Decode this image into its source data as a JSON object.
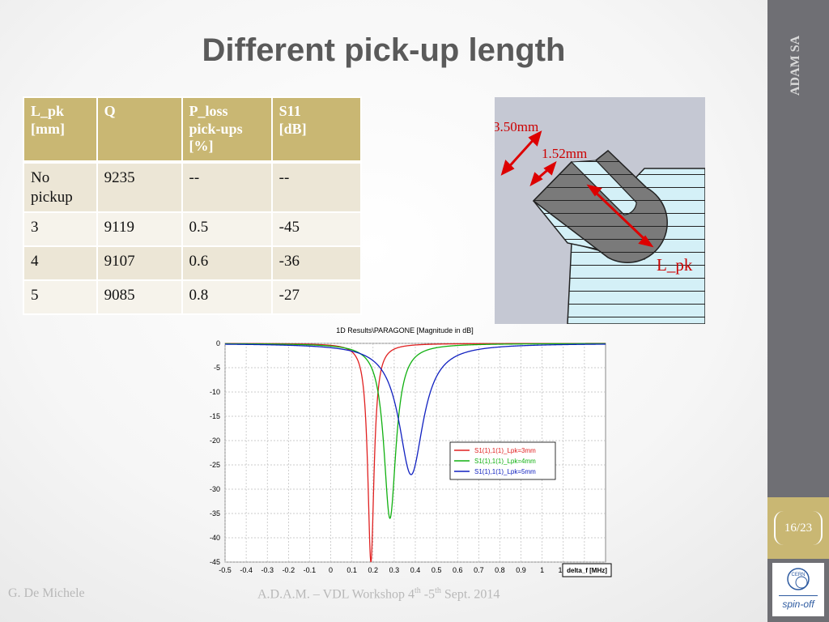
{
  "slide": {
    "title": "Different pick-up length",
    "sidebar_label": "ADAM SA",
    "page_number": "16/23",
    "logo_text": "spin-off",
    "logo_mark": "CERN",
    "footer_author": "G. De Michele",
    "footer_event_pre": "A.D.A.M. – VDL Workshop  4",
    "footer_sup1": "th",
    "footer_event_mid": " -5",
    "footer_sup2": "th",
    "footer_event_post": "  Sept. 2014",
    "colors": {
      "accent": "#c9b773",
      "sidebar": "#6f6f74",
      "title": "#5a5a5a"
    }
  },
  "table": {
    "headers": [
      [
        "L_pk",
        "[mm]"
      ],
      [
        "Q"
      ],
      [
        "P_loss",
        "pick-ups",
        "[%]"
      ],
      [
        "S11",
        "[dB]"
      ]
    ],
    "rows": [
      [
        [
          "No",
          "pickup"
        ],
        [
          "9235"
        ],
        [
          "--"
        ],
        [
          "--"
        ]
      ],
      [
        [
          "3"
        ],
        [
          "9119"
        ],
        [
          "0.5"
        ],
        [
          "-45"
        ]
      ],
      [
        [
          "4"
        ],
        [
          "9107"
        ],
        [
          "0.6"
        ],
        [
          "-36"
        ]
      ],
      [
        [
          "5"
        ],
        [
          "9085"
        ],
        [
          "0.8"
        ],
        [
          "-27"
        ]
      ]
    ]
  },
  "diagram": {
    "label_outer": "3.50mm",
    "label_inner": "1.52mm",
    "label_length": "L_pk"
  },
  "chart_data": {
    "type": "line",
    "title": "1D Results\\PARAGONE [Magnitude in dB]",
    "xlabel": "delta_f [MHz]",
    "ylabel": "",
    "xlim": [
      -0.5,
      1.3
    ],
    "ylim": [
      -45,
      0
    ],
    "x_ticks": [
      -0.5,
      -0.4,
      -0.3,
      -0.2,
      -0.1,
      0,
      0.1,
      0.2,
      0.3,
      0.4,
      0.5,
      0.6,
      0.7,
      0.8,
      0.9,
      1,
      1.1,
      1.2
    ],
    "x_tick_labels": [
      "-0.5",
      "-0.4",
      "-0.3",
      "-0.2",
      "-0.1",
      "0",
      "0.1",
      "0.2",
      "0.3",
      "0.4",
      "0.5",
      "0.6",
      "0.7",
      "0.8",
      "0.9",
      "1",
      "1.1",
      "1.2"
    ],
    "y_ticks": [
      0,
      -5,
      -10,
      -15,
      -20,
      -25,
      -30,
      -35,
      -40,
      -45
    ],
    "y_tick_labels": [
      "0",
      "-5",
      "-10",
      "-15",
      "-20",
      "-25",
      "-30",
      "-35",
      "-40",
      "-45"
    ],
    "grid": true,
    "legend_position": "right",
    "series": [
      {
        "name": "S1(1),1(1)_Lpk=3mm",
        "color": "#e02020",
        "center": 0.19,
        "min": -45,
        "width": 0.018
      },
      {
        "name": "S1(1),1(1)_Lpk=4mm",
        "color": "#10b010",
        "center": 0.28,
        "min": -36,
        "width": 0.035
      },
      {
        "name": "S1(1),1(1)_Lpk=5mm",
        "color": "#1020c0",
        "center": 0.38,
        "min": -27,
        "width": 0.07
      }
    ]
  }
}
